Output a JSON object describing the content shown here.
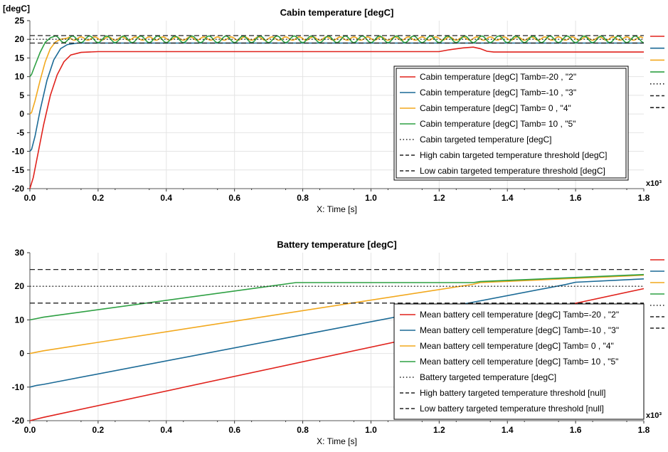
{
  "chart_data": [
    {
      "type": "line",
      "title": "Cabin temperature [degC]",
      "ylabel": "[degC]",
      "xlabel": "X: Time [s]",
      "x_multiplier": "x10³",
      "xlim": [
        0,
        1.8
      ],
      "ylim": [
        -20,
        25
      ],
      "x_ticks": [
        "0.0",
        "0.2",
        "0.4",
        "0.6",
        "0.8",
        "1.0",
        "1.2",
        "1.4",
        "1.6",
        "1.8"
      ],
      "y_ticks": [
        "-20",
        "-15",
        "-10",
        "-5",
        "0",
        "5",
        "10",
        "15",
        "20",
        "25"
      ],
      "grid": true,
      "legend_position": "center-right",
      "series": [
        {
          "name": "Cabin temperature [degC] Tamb=-20 ,  \"2\"",
          "color": "#e0221c",
          "style": "solid",
          "points": [
            [
              0,
              -20
            ],
            [
              0.01,
              -17
            ],
            [
              0.025,
              -10
            ],
            [
              0.04,
              -3
            ],
            [
              0.06,
              5
            ],
            [
              0.08,
              10.5
            ],
            [
              0.1,
              14
            ],
            [
              0.12,
              15.8
            ],
            [
              0.15,
              16.5
            ],
            [
              0.2,
              16.7
            ],
            [
              1.2,
              16.7
            ],
            [
              1.23,
              17.2
            ],
            [
              1.27,
              17.7
            ],
            [
              1.3,
              17.9
            ],
            [
              1.32,
              17.5
            ],
            [
              1.34,
              16.8
            ],
            [
              1.36,
              16.6
            ],
            [
              1.8,
              16.6
            ]
          ]
        },
        {
          "name": "Cabin temperature [degC] Tamb=-10 ,  \"3\"",
          "color": "#1b6a96",
          "style": "solid",
          "points": [
            [
              0,
              -10
            ],
            [
              0.005,
              -9.5
            ],
            [
              0.015,
              -6
            ],
            [
              0.03,
              1
            ],
            [
              0.05,
              9
            ],
            [
              0.07,
              14.5
            ],
            [
              0.09,
              17.5
            ],
            [
              0.11,
              18.6
            ],
            [
              0.14,
              19
            ],
            [
              1.8,
              19
            ]
          ]
        },
        {
          "name": "Cabin temperature [degC] Tamb= 0 ,  \"4\"",
          "color": "#f2a81d",
          "style": "solid",
          "points": [
            [
              0,
              0
            ],
            [
              0.005,
              0.4
            ],
            [
              0.015,
              3.5
            ],
            [
              0.03,
              9
            ],
            [
              0.045,
              14
            ],
            [
              0.06,
              17.5
            ],
            [
              0.075,
              19.3
            ],
            [
              0.09,
              20
            ],
            [
              0.11,
              20.3
            ]
          ],
          "osc": {
            "from": 0.11,
            "to": 1.8,
            "mean": 20.2,
            "amp": 0.45,
            "period": 0.04
          }
        },
        {
          "name": "Cabin temperature [degC] Tamb= 10 ,  \"5\"",
          "color": "#2ea043",
          "style": "solid",
          "points": [
            [
              0,
              10
            ],
            [
              0.005,
              10.6
            ],
            [
              0.015,
              13
            ],
            [
              0.03,
              16.5
            ],
            [
              0.045,
              19.2
            ],
            [
              0.06,
              20.4
            ],
            [
              0.075,
              20.9
            ]
          ],
          "osc": {
            "from": 0.075,
            "to": 1.8,
            "mean": 20.0,
            "amp": 0.9,
            "period": 0.05
          }
        },
        {
          "name": "Cabin targeted temperature [degC]",
          "color": "#222222",
          "style": "dotted",
          "points": [
            [
              0,
              20
            ],
            [
              1.8,
              20
            ]
          ]
        },
        {
          "name": "High cabin targeted temperature threshold [degC]",
          "color": "#222222",
          "style": "dashed",
          "points": [
            [
              0,
              21
            ],
            [
              1.8,
              21
            ]
          ]
        },
        {
          "name": "Low cabin targeted temperature threshold [degC]",
          "color": "#222222",
          "style": "dashed",
          "points": [
            [
              0,
              19
            ],
            [
              1.8,
              19
            ]
          ]
        }
      ]
    },
    {
      "type": "line",
      "title": "Battery temperature [degC]",
      "ylabel": "",
      "xlabel": "X: Time [s]",
      "x_multiplier": "x10³",
      "xlim": [
        0,
        1.8
      ],
      "ylim": [
        -20,
        30
      ],
      "x_ticks": [
        "0.0",
        "0.2",
        "0.4",
        "0.6",
        "0.8",
        "1.0",
        "1.2",
        "1.4",
        "1.6",
        "1.8"
      ],
      "y_ticks": [
        "-20",
        "-10",
        "0",
        "10",
        "20",
        "30"
      ],
      "grid": true,
      "legend_position": "bottom-right",
      "series": [
        {
          "name": "Mean battery cell temperature [degC] Tamb=-20 , \"2\"",
          "color": "#e0221c",
          "style": "solid",
          "points": [
            [
              0,
              -20
            ],
            [
              0.02,
              -19.5
            ],
            [
              0.04,
              -19
            ],
            [
              1.8,
              19.3
            ]
          ]
        },
        {
          "name": "Mean battery cell temperature [degC] Tamb=-10 , \"3\"",
          "color": "#1b6a96",
          "style": "solid",
          "points": [
            [
              0,
              -10
            ],
            [
              0.02,
              -9.5
            ],
            [
              0.04,
              -9.2
            ],
            [
              1.57,
              20.5
            ],
            [
              1.6,
              21.2
            ],
            [
              1.8,
              22.2
            ]
          ]
        },
        {
          "name": "Mean battery cell temperature [degC] Tamb= 0 ,  \"4\"",
          "color": "#f2a81d",
          "style": "solid",
          "points": [
            [
              0,
              0
            ],
            [
              0.02,
              0.4
            ],
            [
              0.04,
              0.8
            ],
            [
              1.3,
              20.6
            ],
            [
              1.32,
              21.1
            ],
            [
              1.8,
              23.3
            ]
          ]
        },
        {
          "name": "Mean battery cell temperature [degC] Tamb= 10 ,  \"5\"",
          "color": "#2ea043",
          "style": "solid",
          "points": [
            [
              0,
              10
            ],
            [
              0.02,
              10.4
            ],
            [
              0.04,
              10.8
            ],
            [
              0.78,
              21.1
            ],
            [
              1.3,
              21.1
            ],
            [
              1.32,
              21.4
            ],
            [
              1.8,
              23.5
            ]
          ]
        },
        {
          "name": "Battery targeted temperature [degC]",
          "color": "#222222",
          "style": "dotted",
          "points": [
            [
              0,
              20
            ],
            [
              1.8,
              20
            ]
          ]
        },
        {
          "name": "High battery targeted temperature threshold [null]",
          "color": "#222222",
          "style": "dashed",
          "points": [
            [
              0,
              25
            ],
            [
              1.8,
              25
            ]
          ]
        },
        {
          "name": "Low battery targeted temperature threshold [null]",
          "color": "#222222",
          "style": "dashed",
          "points": [
            [
              0,
              15
            ],
            [
              1.8,
              15
            ]
          ]
        }
      ]
    }
  ]
}
